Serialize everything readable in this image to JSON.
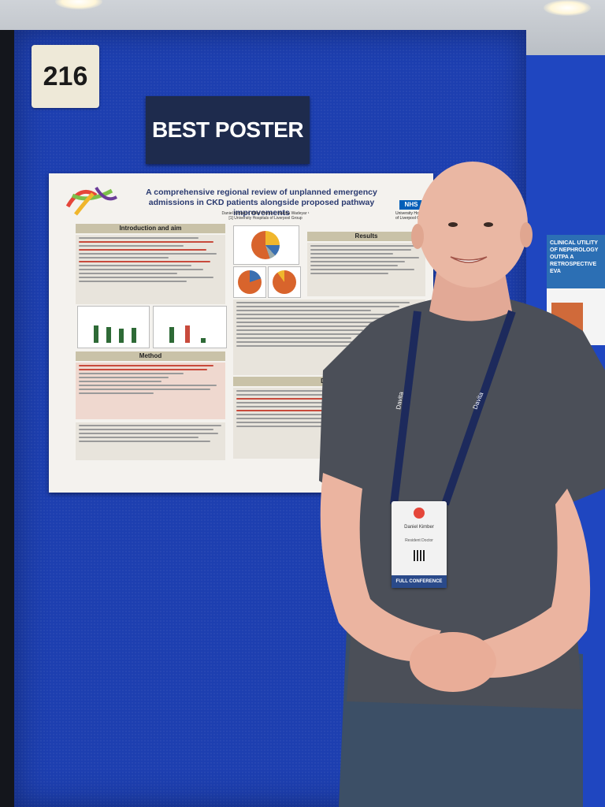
{
  "booth": {
    "number": "216",
    "award_sign": "BEST POSTER"
  },
  "poster": {
    "title": "A comprehensive regional review of unplanned emergency admissions in CKD patients alongside proposed pathway improvements",
    "authors": "Daniel Kimber ¹, Millie Prome ¹, Harsha Wadeyar ¹",
    "affiliation": "[1] University Hospitals of Liverpool Group",
    "nhs_logo": "NHS",
    "institution": "University Hospitals of Liverpool Group",
    "sections": {
      "intro": "Introduction and aim",
      "method": "Method",
      "results": "Results",
      "discussion": "Discu"
    }
  },
  "side_poster": {
    "title": "CLINICAL UTILITY OF NEPHROLOGY OUTPA A RETROSPECTIVE EVA"
  },
  "visitor_badge": {
    "name": "Daniel Kimber",
    "role": "Resident Doctor",
    "footer": "FULL CONFERENCE"
  },
  "lanyard_text": "Davita",
  "colors": {
    "board": "#1d3fb0",
    "sign_bg": "#1e2b4d",
    "shirt": "#4b4f58"
  }
}
